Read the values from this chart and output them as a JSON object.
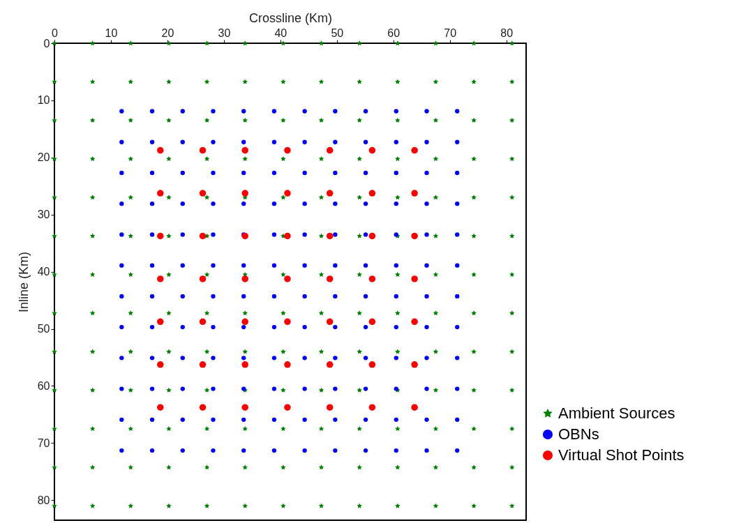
{
  "chart_data": {
    "type": "scatter",
    "xlabel": "Crossline (Km)",
    "ylabel": "Inline (Km)",
    "xlim": [
      0,
      83.5
    ],
    "xticks": [
      0,
      10,
      20,
      30,
      40,
      50,
      60,
      70,
      80
    ],
    "ylim": [
      83.5,
      0
    ],
    "yticks": [
      0,
      10,
      20,
      30,
      40,
      50,
      60,
      70,
      80
    ],
    "grid": false,
    "legend": "bottom right",
    "series": [
      {
        "name": "Ambient Sources",
        "color": "#008000",
        "marker": "star",
        "x": [
          0,
          6.75,
          13.5,
          20.25,
          27,
          33.75,
          40.5,
          47.25,
          54,
          60.75,
          67.5,
          74.25,
          81,
          0,
          6.75,
          13.5,
          20.25,
          27,
          33.75,
          40.5,
          47.25,
          54,
          60.75,
          67.5,
          74.25,
          81,
          0,
          6.75,
          13.5,
          20.25,
          27,
          33.75,
          40.5,
          47.25,
          54,
          60.75,
          67.5,
          74.25,
          81,
          0,
          6.75,
          13.5,
          20.25,
          27,
          33.75,
          40.5,
          47.25,
          54,
          60.75,
          67.5,
          74.25,
          81,
          0,
          6.75,
          13.5,
          20.25,
          27,
          33.75,
          40.5,
          47.25,
          54,
          60.75,
          67.5,
          74.25,
          81,
          0,
          6.75,
          13.5,
          20.25,
          27,
          null,
          40.5,
          47.25,
          54,
          60.75,
          67.5,
          74.25,
          81,
          0,
          6.75,
          13.5,
          20.25,
          27,
          33.75,
          40.5,
          47.25,
          54,
          60.75,
          67.5,
          74.25,
          81,
          0,
          6.75,
          13.5,
          20.25,
          27,
          33.75,
          40.5,
          47.25,
          54,
          60.75,
          67.5,
          74.25,
          81,
          0,
          6.75,
          13.5,
          20.25,
          27,
          33.75,
          40.5,
          47.25,
          54,
          60.75,
          67.5,
          74.25,
          81,
          0,
          6.75,
          13.5,
          20.25,
          27,
          33.75,
          40.5,
          47.25,
          54,
          60.75,
          67.5,
          74.25,
          81,
          0,
          6.75,
          13.5,
          20.25,
          27,
          33.75,
          40.5,
          47.25,
          54,
          60.75,
          67.5,
          74.25,
          81,
          0,
          6.75,
          13.5,
          20.25,
          27,
          33.75,
          40.5,
          47.25,
          54,
          60.75,
          67.5,
          74.25,
          81,
          0,
          6.75,
          13.5,
          20.25,
          27,
          33.75,
          40.5,
          47.25,
          54,
          60.75,
          67.5,
          74.25,
          81
        ],
        "values": [
          0,
          0,
          0,
          0,
          0,
          0,
          0,
          0,
          0,
          0,
          0,
          0,
          0,
          6.75,
          6.75,
          6.75,
          6.75,
          6.75,
          6.75,
          6.75,
          6.75,
          6.75,
          6.75,
          6.75,
          6.75,
          6.75,
          13.5,
          13.5,
          13.5,
          13.5,
          13.5,
          13.5,
          13.5,
          13.5,
          13.5,
          13.5,
          13.5,
          13.5,
          13.5,
          20.25,
          20.25,
          20.25,
          20.25,
          20.25,
          20.25,
          20.25,
          20.25,
          20.25,
          20.25,
          20.25,
          20.25,
          20.25,
          27,
          27,
          27,
          27,
          27,
          27,
          27,
          27,
          27,
          27,
          27,
          27,
          27,
          33.75,
          33.75,
          33.75,
          33.75,
          33.75,
          null,
          33.75,
          33.75,
          33.75,
          33.75,
          33.75,
          33.75,
          33.75,
          40.5,
          40.5,
          40.5,
          40.5,
          40.5,
          40.5,
          40.5,
          40.5,
          40.5,
          40.5,
          40.5,
          40.5,
          40.5,
          47.25,
          47.25,
          47.25,
          47.25,
          47.25,
          47.25,
          47.25,
          47.25,
          47.25,
          47.25,
          47.25,
          47.25,
          47.25,
          54,
          54,
          54,
          54,
          54,
          54,
          54,
          54,
          54,
          54,
          54,
          54,
          54,
          60.75,
          60.75,
          60.75,
          60.75,
          60.75,
          60.75,
          60.75,
          60.75,
          60.75,
          60.75,
          60.75,
          60.75,
          60.75,
          67.5,
          67.5,
          67.5,
          67.5,
          67.5,
          67.5,
          67.5,
          67.5,
          67.5,
          67.5,
          67.5,
          67.5,
          67.5,
          74.25,
          74.25,
          74.25,
          74.25,
          74.25,
          74.25,
          74.25,
          74.25,
          74.25,
          74.25,
          74.25,
          74.25,
          74.25,
          81,
          81,
          81,
          81,
          81,
          81,
          81,
          81,
          81,
          81,
          81,
          81,
          81
        ]
      },
      {
        "name": "OBNs",
        "color": "#0000ff",
        "marker": "circle",
        "x": [
          11.9,
          17.3,
          22.7,
          28.1,
          33.5,
          38.9,
          44.3,
          49.7,
          55.1,
          60.5,
          65.9,
          71.3,
          11.9,
          17.3,
          22.7,
          28.1,
          33.5,
          38.9,
          44.3,
          49.7,
          55.1,
          60.5,
          65.9,
          71.3,
          11.9,
          17.3,
          22.7,
          28.1,
          33.5,
          38.9,
          44.3,
          49.7,
          55.1,
          60.5,
          65.9,
          71.3,
          11.9,
          17.3,
          22.7,
          28.1,
          33.5,
          38.9,
          44.3,
          49.7,
          55.1,
          60.5,
          65.9,
          71.3,
          11.9,
          17.3,
          22.7,
          28.1,
          33.5,
          38.9,
          44.3,
          49.7,
          55.1,
          60.5,
          65.9,
          71.3,
          11.9,
          17.3,
          22.7,
          28.1,
          33.5,
          38.9,
          44.3,
          49.7,
          55.1,
          60.5,
          65.9,
          71.3,
          11.9,
          17.3,
          22.7,
          28.1,
          33.5,
          38.9,
          44.3,
          49.7,
          55.1,
          60.5,
          65.9,
          71.3,
          11.9,
          17.3,
          22.7,
          28.1,
          33.5,
          38.9,
          44.3,
          49.7,
          55.1,
          60.5,
          65.9,
          71.3,
          11.9,
          17.3,
          22.7,
          28.1,
          33.5,
          38.9,
          44.3,
          49.7,
          55.1,
          60.5,
          65.9,
          71.3,
          11.9,
          17.3,
          22.7,
          28.1,
          33.5,
          38.9,
          44.3,
          49.7,
          55.1,
          60.5,
          65.9,
          71.3,
          11.9,
          17.3,
          22.7,
          28.1,
          33.5,
          38.9,
          44.3,
          49.7,
          55.1,
          60.5,
          65.9,
          71.3,
          11.9,
          17.3,
          22.7,
          28.1,
          33.5,
          38.9,
          44.3,
          49.7,
          55.1,
          60.5,
          65.9,
          71.3
        ],
        "values": [
          11.9,
          11.9,
          11.9,
          11.9,
          11.9,
          11.9,
          11.9,
          11.9,
          11.9,
          11.9,
          11.9,
          11.9,
          17.3,
          17.3,
          17.3,
          17.3,
          17.3,
          17.3,
          17.3,
          17.3,
          17.3,
          17.3,
          17.3,
          17.3,
          22.7,
          22.7,
          22.7,
          22.7,
          22.7,
          22.7,
          22.7,
          22.7,
          22.7,
          22.7,
          22.7,
          22.7,
          28.1,
          28.1,
          28.1,
          28.1,
          28.1,
          28.1,
          28.1,
          28.1,
          28.1,
          28.1,
          28.1,
          28.1,
          33.5,
          33.5,
          33.5,
          33.5,
          33.5,
          33.5,
          33.5,
          33.5,
          33.5,
          33.5,
          33.5,
          33.5,
          38.9,
          38.9,
          38.9,
          38.9,
          38.9,
          38.9,
          38.9,
          38.9,
          38.9,
          38.9,
          38.9,
          38.9,
          44.3,
          44.3,
          44.3,
          44.3,
          44.3,
          44.3,
          44.3,
          44.3,
          44.3,
          44.3,
          44.3,
          44.3,
          49.7,
          49.7,
          49.7,
          49.7,
          49.7,
          49.7,
          49.7,
          49.7,
          49.7,
          49.7,
          49.7,
          49.7,
          55.1,
          55.1,
          55.1,
          55.1,
          55.1,
          55.1,
          55.1,
          55.1,
          55.1,
          55.1,
          55.1,
          55.1,
          60.5,
          60.5,
          60.5,
          60.5,
          60.5,
          60.5,
          60.5,
          60.5,
          60.5,
          60.5,
          60.5,
          60.5,
          65.9,
          65.9,
          65.9,
          65.9,
          65.9,
          65.9,
          65.9,
          65.9,
          65.9,
          65.9,
          65.9,
          65.9,
          71.3,
          71.3,
          71.3,
          71.3,
          71.3,
          71.3,
          71.3,
          71.3,
          71.3,
          71.3,
          71.3,
          71.3
        ]
      },
      {
        "name": "Virtual Shot Points",
        "color": "#ff0000",
        "marker": "circle",
        "x": [
          18.75,
          26.25,
          33.75,
          41.25,
          48.75,
          56.25,
          63.75,
          18.75,
          26.25,
          33.75,
          41.25,
          48.75,
          56.25,
          63.75,
          18.75,
          26.25,
          33.75,
          41.25,
          48.75,
          56.25,
          63.75,
          18.75,
          26.25,
          33.75,
          41.25,
          48.75,
          56.25,
          63.75,
          18.75,
          26.25,
          33.75,
          41.25,
          48.75,
          56.25,
          63.75,
          18.75,
          26.25,
          33.75,
          41.25,
          48.75,
          56.25,
          63.75,
          18.75,
          26.25,
          33.75,
          41.25,
          48.75,
          56.25,
          63.75
        ],
        "values": [
          18.75,
          18.75,
          18.75,
          18.75,
          18.75,
          18.75,
          18.75,
          26.25,
          26.25,
          26.25,
          26.25,
          26.25,
          26.25,
          26.25,
          33.75,
          33.75,
          33.75,
          33.75,
          33.75,
          33.75,
          33.75,
          41.25,
          41.25,
          41.25,
          41.25,
          41.25,
          41.25,
          41.25,
          48.75,
          48.75,
          48.75,
          48.75,
          48.75,
          48.75,
          48.75,
          56.25,
          56.25,
          56.25,
          56.25,
          56.25,
          56.25,
          56.25,
          63.75,
          63.75,
          63.75,
          63.75,
          63.75,
          63.75,
          63.75
        ]
      }
    ]
  }
}
